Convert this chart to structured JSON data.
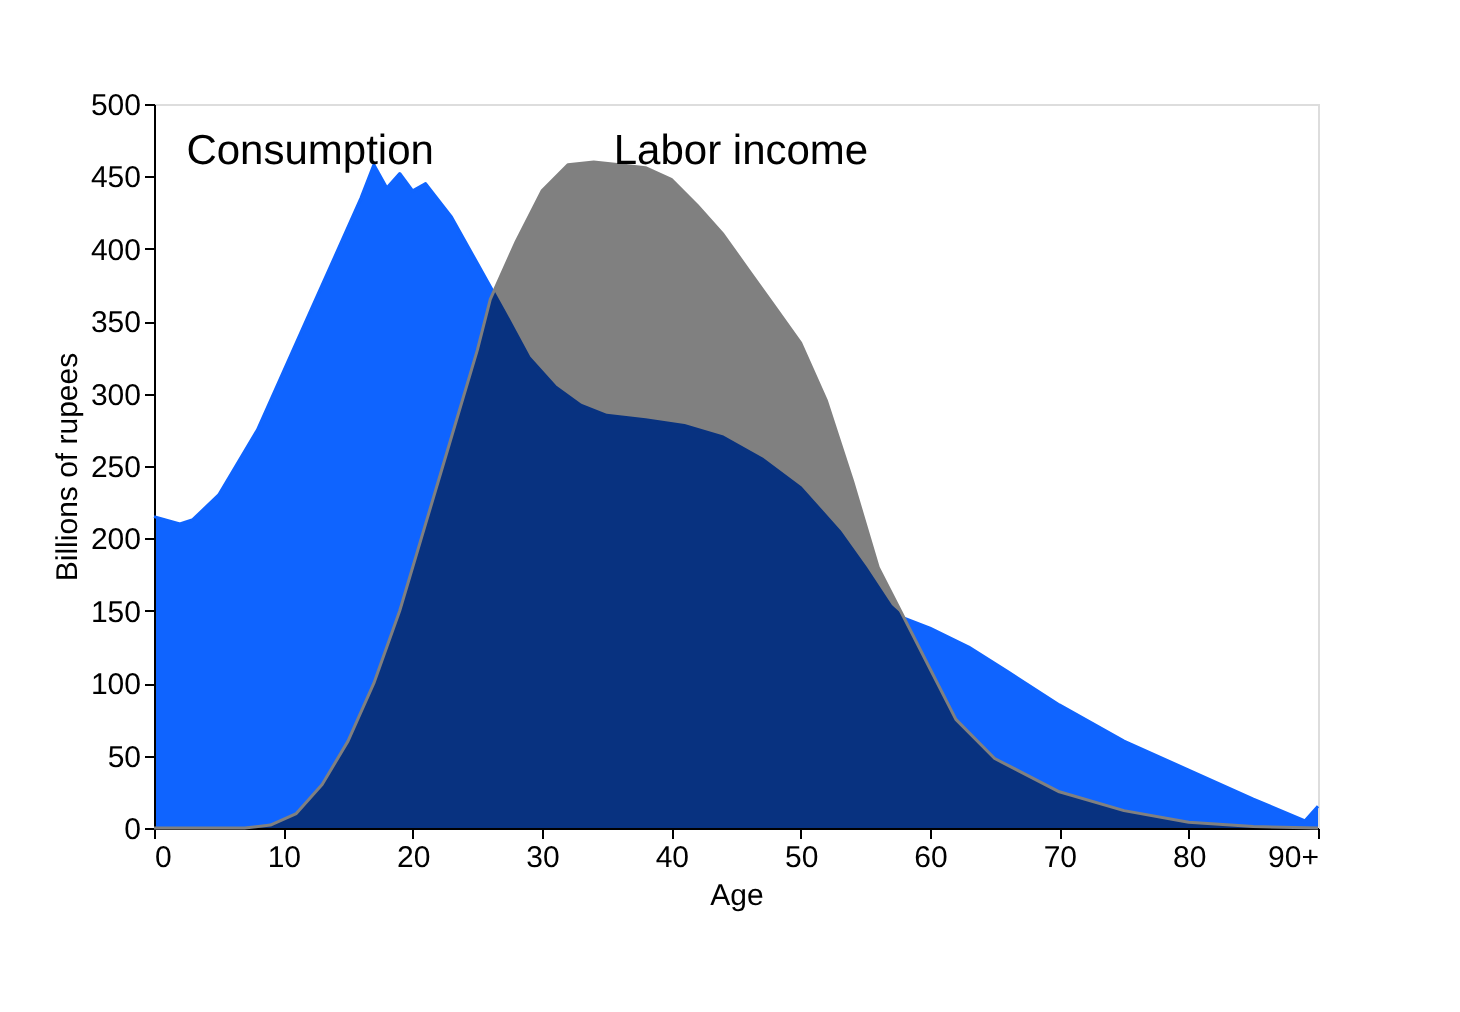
{
  "chart_data": {
    "type": "area",
    "xlabel": "Age",
    "ylabel": "Billions of rupees",
    "series": [
      {
        "name": "Consumption",
        "color": "#0f64ff",
        "x": [
          0,
          2,
          3,
          5,
          8,
          10,
          12,
          14,
          16,
          17,
          18,
          19,
          20,
          21,
          23,
          25,
          27,
          29,
          31,
          33,
          35,
          38,
          41,
          44,
          47,
          50,
          53,
          55,
          57,
          58,
          60,
          63,
          66,
          70,
          75,
          80,
          85,
          89,
          90
        ],
        "values": [
          215,
          210,
          213,
          230,
          275,
          315,
          355,
          395,
          435,
          458,
          442,
          452,
          440,
          445,
          422,
          390,
          358,
          325,
          305,
          292,
          285,
          282,
          278,
          270,
          255,
          235,
          205,
          180,
          153,
          145,
          138,
          125,
          108,
          85,
          60,
          40,
          20,
          5,
          15
        ]
      },
      {
        "name": "Labor income",
        "color": "#808080",
        "x": [
          0,
          7,
          9,
          11,
          13,
          15,
          17,
          19,
          21,
          23,
          25,
          26,
          28,
          30,
          32,
          34,
          36,
          38,
          40,
          42,
          44,
          46,
          48,
          50,
          52,
          54,
          56,
          58,
          60,
          62,
          65,
          70,
          75,
          80,
          85,
          90
        ],
        "values": [
          0,
          0,
          2,
          10,
          30,
          60,
          100,
          150,
          210,
          270,
          330,
          365,
          405,
          440,
          458,
          460,
          458,
          456,
          448,
          430,
          410,
          385,
          360,
          335,
          295,
          240,
          180,
          145,
          110,
          75,
          48,
          25,
          12,
          4,
          1,
          0
        ]
      }
    ],
    "xlim": [
      0,
      90
    ],
    "xticks": [
      0,
      10,
      20,
      30,
      40,
      50,
      60,
      70,
      80,
      {
        "value": 90,
        "label": "90+"
      }
    ],
    "ylim": [
      0,
      500
    ],
    "yticks": [
      0,
      50,
      100,
      150,
      200,
      250,
      300,
      350,
      400,
      450,
      500
    ],
    "grid": false
  }
}
